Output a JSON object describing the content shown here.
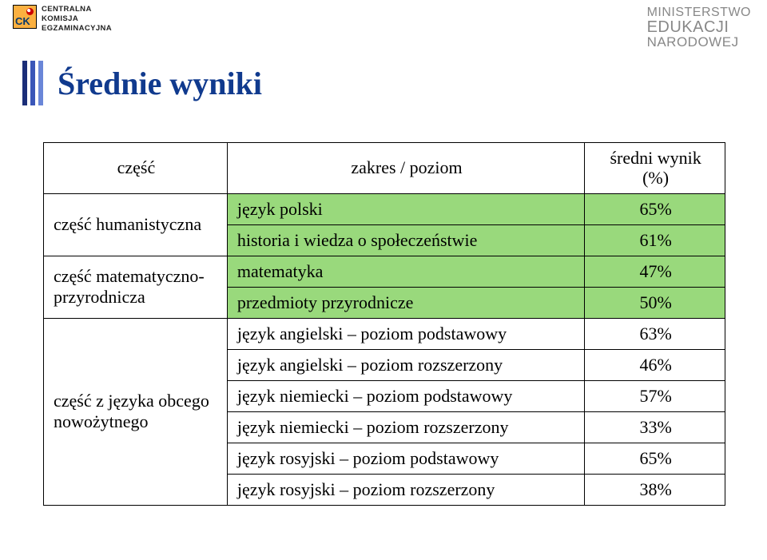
{
  "header": {
    "left_logo_abbrev": "CK",
    "left_line1": "CENTRALNA",
    "left_line2": "KOMISJA",
    "left_line3": "EGZAMINACYJNA",
    "right_line1": "MINISTERSTWO",
    "right_line2": "EDUKACJI",
    "right_line3": "NARODOWEJ"
  },
  "title": "Średnie wyniki",
  "table": {
    "head": {
      "col1": "część",
      "col2": "zakres / poziom",
      "col3_line1": "średni wynik",
      "col3_line2": "(%)"
    },
    "rows": [
      {
        "section": "część humanistyczna",
        "rowspan": 2,
        "subject": "język polski",
        "value": "65%",
        "group": "green"
      },
      {
        "subject": "historia i wiedza o społeczeństwie",
        "value": "61%",
        "group": "green"
      },
      {
        "section": "część matematyczno-przyrodnicza",
        "rowspan": 2,
        "subject": "matematyka",
        "value": "47%",
        "group": "green"
      },
      {
        "subject": "przedmioty przyrodnicze",
        "value": "50%",
        "group": "green"
      },
      {
        "section": "część z języka obcego nowożytnego",
        "rowspan": 6,
        "subject": "język angielski – poziom podstawowy",
        "value": "63%",
        "group": "lang"
      },
      {
        "subject": "język angielski – poziom rozszerzony",
        "value": "46%",
        "group": "lang"
      },
      {
        "subject": "język niemiecki – poziom podstawowy",
        "value": "57%",
        "group": "lang"
      },
      {
        "subject": "język niemiecki – poziom rozszerzony",
        "value": "33%",
        "group": "lang"
      },
      {
        "subject": "język rosyjski – poziom podstawowy",
        "value": "65%",
        "group": "lang"
      },
      {
        "subject": "język rosyjski – poziom rozszerzony",
        "value": "38%",
        "group": "lang"
      }
    ]
  },
  "colors": {
    "title": "#103a8e",
    "green_row": "#99d97c",
    "header_grey": "#888888",
    "logo_orange": "#fbb040"
  }
}
